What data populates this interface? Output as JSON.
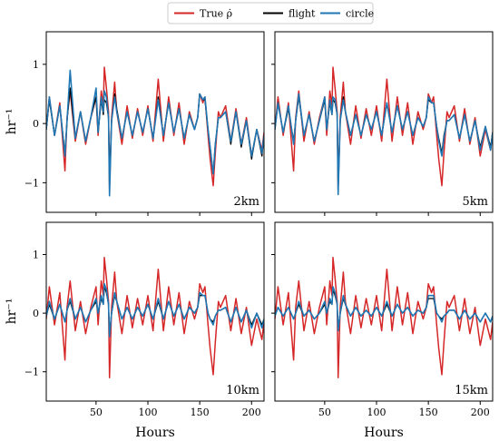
{
  "chart_data": {
    "type": "line",
    "legend": {
      "placement": "top-center",
      "entries": [
        {
          "label": "True ρ̇",
          "color": "#d62728"
        },
        {
          "label": "flight",
          "color": "#000000"
        },
        {
          "label": "circle",
          "color": "#1f77b4"
        }
      ]
    },
    "xlabel": "Hours",
    "ylabel": "hr⁻¹",
    "xlim": [
      2,
      212
    ],
    "ylim": [
      -1.5,
      1.55
    ],
    "xticks": [
      50,
      100,
      150,
      200
    ],
    "yticks": [
      -1,
      0,
      1
    ],
    "panels": [
      {
        "label": "2km"
      },
      {
        "label": "5km"
      },
      {
        "label": "10km"
      },
      {
        "label": "15km"
      }
    ],
    "true_rho_dot": {
      "x": [
        2,
        5,
        10,
        15,
        20,
        22,
        25,
        30,
        35,
        40,
        45,
        50,
        52,
        55,
        57,
        58,
        60,
        62,
        63,
        65,
        68,
        70,
        75,
        80,
        85,
        90,
        95,
        100,
        105,
        110,
        115,
        120,
        125,
        130,
        135,
        140,
        145,
        148,
        150,
        153,
        155,
        158,
        160,
        163,
        165,
        168,
        170,
        175,
        180,
        185,
        190,
        195,
        200,
        205,
        210,
        212
      ],
      "y": [
        -0.1,
        0.45,
        -0.2,
        0.35,
        -0.8,
        0.1,
        0.55,
        -0.3,
        0.2,
        -0.35,
        0.1,
        0.45,
        -0.2,
        0.55,
        0.3,
        0.95,
        0.6,
        0.2,
        -1.1,
        0.1,
        0.7,
        0.2,
        -0.35,
        0.3,
        -0.25,
        0.25,
        -0.2,
        0.3,
        -0.3,
        0.75,
        -0.3,
        0.45,
        -0.2,
        0.35,
        -0.35,
        0.2,
        -0.1,
        0.1,
        0.5,
        0.35,
        0.45,
        -0.2,
        -0.6,
        -1.05,
        -0.5,
        0.2,
        0.1,
        0.3,
        -0.3,
        0.25,
        -0.35,
        0.1,
        -0.55,
        -0.1,
        -0.45,
        -0.15
      ]
    },
    "flight": [
      {
        "x": [
          2,
          5,
          10,
          15,
          20,
          22,
          25,
          30,
          35,
          40,
          45,
          50,
          52,
          55,
          57,
          58,
          60,
          62,
          63,
          65,
          68,
          70,
          75,
          80,
          85,
          90,
          95,
          100,
          105,
          110,
          115,
          120,
          125,
          130,
          135,
          140,
          145,
          148,
          150,
          153,
          155,
          158,
          160,
          163,
          165,
          168,
          170,
          175,
          180,
          185,
          190,
          195,
          200,
          205,
          210,
          212
        ],
        "y": [
          -0.1,
          0.4,
          -0.2,
          0.3,
          -0.5,
          0.05,
          0.6,
          -0.25,
          0.2,
          -0.3,
          0.1,
          0.45,
          -0.15,
          0.4,
          0.15,
          0.4,
          0.35,
          0.1,
          -0.9,
          0.05,
          0.5,
          0.25,
          -0.25,
          0.2,
          -0.2,
          0.2,
          -0.15,
          0.25,
          -0.25,
          0.45,
          -0.2,
          0.35,
          -0.15,
          0.25,
          -0.25,
          0.15,
          -0.1,
          0.1,
          0.5,
          0.4,
          0.4,
          -0.1,
          -0.4,
          -0.85,
          -0.35,
          0.1,
          0.1,
          0.2,
          -0.35,
          0.2,
          -0.4,
          0.05,
          -0.6,
          -0.1,
          -0.55,
          -0.2
        ]
      },
      {
        "x": [
          2,
          5,
          10,
          15,
          20,
          22,
          25,
          30,
          35,
          40,
          45,
          50,
          52,
          55,
          57,
          58,
          60,
          62,
          63,
          65,
          68,
          70,
          75,
          80,
          85,
          90,
          95,
          100,
          105,
          110,
          115,
          120,
          125,
          130,
          135,
          140,
          145,
          148,
          150,
          153,
          155,
          158,
          160,
          163,
          165,
          168,
          170,
          175,
          180,
          185,
          190,
          195,
          200,
          205,
          210,
          212
        ],
        "y": [
          -0.1,
          0.35,
          -0.15,
          0.25,
          -0.3,
          0.05,
          0.45,
          -0.2,
          0.15,
          -0.3,
          0.05,
          0.4,
          -0.1,
          0.35,
          0.15,
          0.4,
          0.35,
          0.15,
          -1.05,
          0.05,
          0.45,
          0.2,
          -0.2,
          0.15,
          -0.2,
          0.15,
          -0.1,
          0.2,
          -0.2,
          0.35,
          -0.15,
          0.3,
          -0.1,
          0.2,
          -0.2,
          0.1,
          -0.05,
          0.1,
          0.4,
          0.35,
          0.35,
          -0.05,
          -0.25,
          -0.5,
          -0.2,
          0.05,
          0.05,
          0.15,
          -0.25,
          0.15,
          -0.3,
          0.05,
          -0.4,
          -0.05,
          -0.4,
          -0.15
        ]
      },
      {
        "x": [
          2,
          5,
          10,
          15,
          20,
          22,
          25,
          30,
          35,
          40,
          45,
          50,
          52,
          55,
          57,
          58,
          60,
          62,
          63,
          65,
          68,
          70,
          75,
          80,
          85,
          90,
          95,
          100,
          105,
          110,
          115,
          120,
          125,
          130,
          135,
          140,
          145,
          148,
          150,
          153,
          155,
          158,
          160,
          163,
          165,
          168,
          170,
          175,
          180,
          185,
          190,
          195,
          200,
          205,
          210,
          212
        ],
        "y": [
          -0.05,
          0.15,
          -0.1,
          0.15,
          -0.15,
          0.05,
          0.2,
          -0.1,
          0.1,
          -0.15,
          0.05,
          0.2,
          0.0,
          0.25,
          0.15,
          0.45,
          0.35,
          0.15,
          -0.35,
          0.0,
          0.3,
          0.2,
          -0.1,
          0.1,
          -0.1,
          0.1,
          -0.05,
          0.15,
          -0.1,
          0.2,
          -0.1,
          0.2,
          -0.05,
          0.15,
          -0.1,
          0.1,
          0.0,
          0.1,
          0.3,
          0.3,
          0.3,
          0.0,
          -0.1,
          -0.15,
          -0.05,
          0.05,
          0.05,
          0.1,
          -0.15,
          0.1,
          -0.15,
          0.05,
          -0.2,
          0.0,
          -0.2,
          -0.1
        ]
      },
      {
        "x": [
          2,
          5,
          10,
          15,
          20,
          22,
          25,
          30,
          35,
          40,
          45,
          50,
          52,
          55,
          57,
          58,
          60,
          62,
          63,
          65,
          68,
          70,
          75,
          80,
          85,
          90,
          95,
          100,
          105,
          110,
          115,
          120,
          125,
          130,
          135,
          140,
          145,
          148,
          150,
          153,
          155,
          158,
          160,
          163,
          165,
          168,
          170,
          175,
          180,
          185,
          190,
          195,
          200,
          205,
          210,
          212
        ],
        "y": [
          -0.05,
          0.1,
          -0.05,
          0.1,
          -0.1,
          0.0,
          0.15,
          -0.05,
          0.05,
          -0.1,
          0.0,
          0.15,
          0.0,
          0.2,
          0.15,
          0.4,
          0.3,
          0.15,
          -0.25,
          0.0,
          0.25,
          0.15,
          -0.05,
          0.1,
          -0.05,
          0.05,
          -0.05,
          0.1,
          -0.05,
          0.15,
          -0.05,
          0.15,
          0.0,
          0.1,
          -0.05,
          0.05,
          0.0,
          0.1,
          0.25,
          0.25,
          0.25,
          0.0,
          -0.05,
          -0.1,
          -0.05,
          0.0,
          0.05,
          0.05,
          -0.1,
          0.05,
          -0.1,
          0.0,
          -0.15,
          0.0,
          -0.15,
          -0.05
        ]
      }
    ],
    "circle": [
      {
        "x": [
          2,
          5,
          10,
          15,
          20,
          22,
          25,
          30,
          35,
          40,
          45,
          50,
          52,
          55,
          57,
          58,
          60,
          62,
          63,
          65,
          68,
          70,
          75,
          80,
          85,
          90,
          95,
          100,
          105,
          110,
          115,
          120,
          125,
          130,
          135,
          140,
          145,
          148,
          150,
          153,
          155,
          158,
          160,
          163,
          165,
          168,
          170,
          175,
          180,
          185,
          190,
          195,
          200,
          205,
          210,
          212
        ],
        "y": [
          -0.1,
          0.45,
          -0.2,
          0.3,
          -0.55,
          0.05,
          0.9,
          -0.25,
          0.2,
          -0.3,
          0.1,
          0.6,
          -0.15,
          0.45,
          0.2,
          0.55,
          0.45,
          0.1,
          -1.22,
          0.05,
          0.45,
          0.2,
          -0.25,
          0.2,
          -0.2,
          0.2,
          -0.15,
          0.25,
          -0.25,
          0.4,
          -0.2,
          0.35,
          -0.15,
          0.25,
          -0.25,
          0.15,
          -0.1,
          0.1,
          0.5,
          0.4,
          0.45,
          -0.1,
          -0.4,
          -0.85,
          -0.35,
          0.1,
          0.1,
          0.2,
          -0.3,
          0.2,
          -0.35,
          0.05,
          -0.55,
          -0.1,
          -0.5,
          -0.2
        ]
      },
      {
        "x": [
          2,
          5,
          10,
          15,
          20,
          22,
          25,
          30,
          35,
          40,
          45,
          50,
          52,
          55,
          57,
          58,
          60,
          62,
          63,
          65,
          68,
          70,
          75,
          80,
          85,
          90,
          95,
          100,
          105,
          110,
          115,
          120,
          125,
          130,
          135,
          140,
          145,
          148,
          150,
          153,
          155,
          158,
          160,
          163,
          165,
          168,
          170,
          175,
          180,
          185,
          190,
          195,
          200,
          205,
          210,
          212
        ],
        "y": [
          -0.1,
          0.35,
          -0.15,
          0.3,
          -0.35,
          0.05,
          0.5,
          -0.2,
          0.15,
          -0.3,
          0.05,
          0.45,
          -0.1,
          0.4,
          0.15,
          0.45,
          0.4,
          0.15,
          -1.2,
          0.05,
          0.4,
          0.2,
          -0.2,
          0.15,
          -0.2,
          0.15,
          -0.1,
          0.2,
          -0.2,
          0.35,
          -0.15,
          0.3,
          -0.1,
          0.2,
          -0.2,
          0.1,
          -0.05,
          0.1,
          0.45,
          0.35,
          0.35,
          -0.05,
          -0.3,
          -0.55,
          -0.25,
          0.05,
          0.05,
          0.15,
          -0.25,
          0.15,
          -0.3,
          0.05,
          -0.45,
          -0.05,
          -0.45,
          -0.15
        ]
      },
      {
        "x": [
          2,
          5,
          10,
          15,
          20,
          22,
          25,
          30,
          35,
          40,
          45,
          50,
          52,
          55,
          57,
          58,
          60,
          62,
          63,
          65,
          68,
          70,
          75,
          80,
          85,
          90,
          95,
          100,
          105,
          110,
          115,
          120,
          125,
          130,
          135,
          140,
          145,
          148,
          150,
          153,
          155,
          158,
          160,
          163,
          165,
          168,
          170,
          175,
          180,
          185,
          190,
          195,
          200,
          205,
          210,
          212
        ],
        "y": [
          -0.05,
          0.2,
          -0.1,
          0.15,
          -0.15,
          0.05,
          0.25,
          -0.1,
          0.1,
          -0.15,
          0.05,
          0.25,
          0.0,
          0.3,
          0.15,
          0.5,
          0.4,
          0.15,
          -0.4,
          0.0,
          0.35,
          0.2,
          -0.1,
          0.1,
          -0.1,
          0.1,
          -0.05,
          0.15,
          -0.1,
          0.25,
          -0.1,
          0.2,
          -0.05,
          0.15,
          -0.1,
          0.1,
          0.0,
          0.1,
          0.35,
          0.3,
          0.3,
          0.0,
          -0.1,
          -0.2,
          -0.05,
          0.05,
          0.05,
          0.1,
          -0.15,
          0.1,
          -0.15,
          0.05,
          -0.25,
          0.0,
          -0.25,
          -0.1
        ]
      },
      {
        "x": [
          2,
          5,
          10,
          15,
          20,
          22,
          25,
          30,
          35,
          40,
          45,
          50,
          52,
          55,
          57,
          58,
          60,
          62,
          63,
          65,
          68,
          70,
          75,
          80,
          85,
          90,
          95,
          100,
          105,
          110,
          115,
          120,
          125,
          130,
          135,
          140,
          145,
          148,
          150,
          153,
          155,
          158,
          160,
          163,
          165,
          168,
          170,
          175,
          180,
          185,
          190,
          195,
          200,
          205,
          210,
          212
        ],
        "y": [
          -0.05,
          0.1,
          -0.05,
          0.1,
          -0.1,
          0.0,
          0.2,
          -0.05,
          0.05,
          -0.1,
          0.0,
          0.2,
          0.0,
          0.25,
          0.15,
          0.45,
          0.35,
          0.15,
          -0.3,
          0.0,
          0.3,
          0.15,
          -0.05,
          0.1,
          -0.05,
          0.05,
          -0.05,
          0.1,
          -0.05,
          0.2,
          -0.05,
          0.15,
          0.0,
          0.1,
          -0.05,
          0.05,
          0.0,
          0.1,
          0.3,
          0.3,
          0.3,
          0.0,
          -0.05,
          -0.15,
          -0.05,
          0.0,
          0.05,
          0.05,
          -0.1,
          0.05,
          -0.1,
          0.0,
          -0.15,
          0.0,
          -0.15,
          -0.05
        ]
      }
    ]
  }
}
